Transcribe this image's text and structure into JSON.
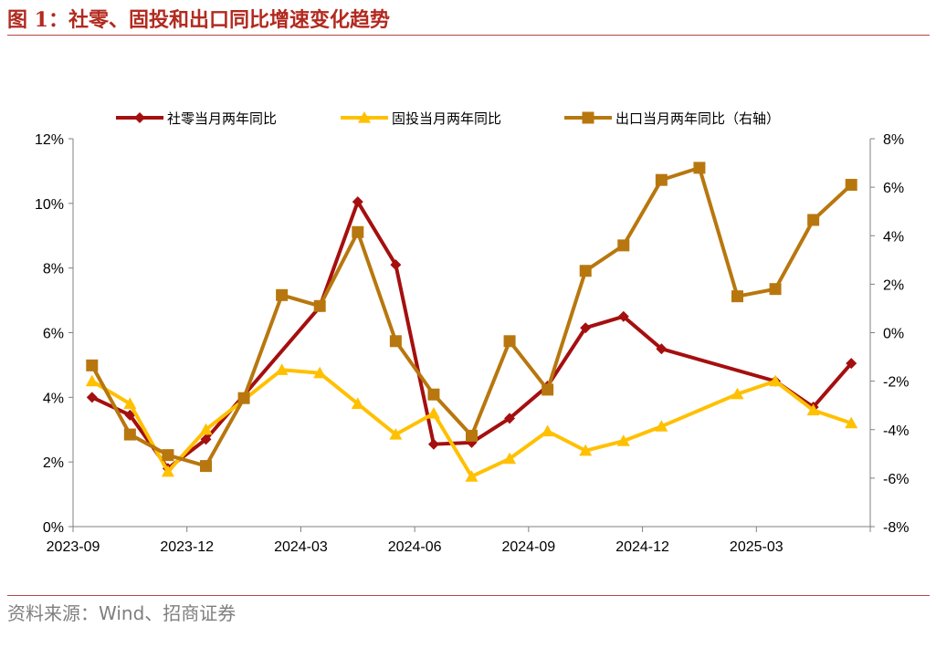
{
  "figure": {
    "title": "图 1：社零、固投和出口同比增速变化趋势",
    "source": "资料来源：Wind、招商证券"
  },
  "chart_data": {
    "type": "line",
    "title": "",
    "xlabel": "",
    "ylabel": "",
    "legend_position": "top",
    "grid": false,
    "x_tick_labels": [
      "2023-09",
      "2023-12",
      "2024-03",
      "2024-06",
      "2024-09",
      "2024-12",
      "2025-03"
    ],
    "x": [
      "2023-09",
      "2023-10",
      "2023-11",
      "2023-12",
      "2024-01",
      "2024-02",
      "2024-03",
      "2024-04",
      "2024-05",
      "2024-06",
      "2024-07",
      "2024-08",
      "2024-09",
      "2024-10",
      "2024-11",
      "2024-12",
      "2025-01",
      "2025-02",
      "2025-03",
      "2025-04",
      "2025-05"
    ],
    "y_left": {
      "lim": [
        0,
        12
      ],
      "ticks": [
        "0%",
        "2%",
        "4%",
        "6%",
        "8%",
        "10%",
        "12%"
      ]
    },
    "y_right": {
      "lim": [
        -8,
        8
      ],
      "ticks": [
        "-8%",
        "-6%",
        "-4%",
        "-2%",
        "0%",
        "2%",
        "4%",
        "6%",
        "8%"
      ]
    },
    "series": [
      {
        "name": "社零当月两年同比",
        "axis": "left",
        "color": "#a50f0f",
        "marker": "diamond",
        "values": [
          4.0,
          3.45,
          1.8,
          2.7,
          null,
          null,
          6.8,
          10.05,
          8.1,
          2.55,
          2.6,
          3.35,
          4.35,
          6.15,
          6.5,
          5.5,
          null,
          null,
          4.5,
          3.7,
          5.05
        ]
      },
      {
        "name": "固投当月两年同比",
        "axis": "left",
        "color": "#ffc000",
        "marker": "triangle",
        "values": [
          4.5,
          3.8,
          1.7,
          3.0,
          null,
          4.85,
          4.75,
          3.8,
          2.85,
          3.5,
          1.55,
          2.1,
          2.95,
          2.35,
          2.65,
          3.1,
          null,
          4.1,
          4.5,
          3.6,
          3.2
        ]
      },
      {
        "name": "出口当月两年同比（右轴）",
        "axis": "right",
        "color": "#b8770e",
        "marker": "square",
        "values": [
          -1.35,
          -4.2,
          -5.05,
          -5.5,
          -2.7,
          1.55,
          1.1,
          4.15,
          -0.35,
          -2.55,
          -4.25,
          -0.35,
          -2.35,
          2.55,
          3.6,
          6.3,
          6.8,
          1.5,
          1.8,
          4.65,
          6.1
        ]
      }
    ]
  }
}
